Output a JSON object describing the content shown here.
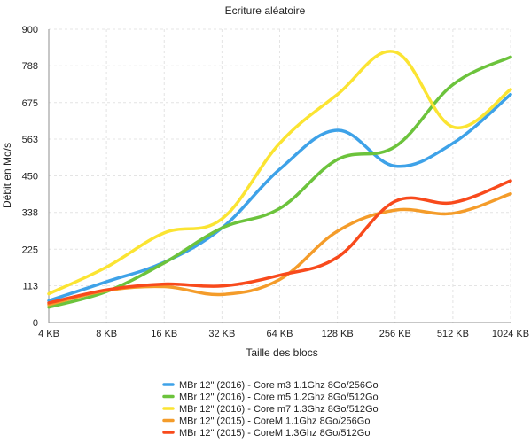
{
  "chart_data": {
    "type": "line",
    "title": "Ecriture aléatoire",
    "xlabel": "Taille des blocs",
    "ylabel": "Débit en Mo/s",
    "categories": [
      "4 KB",
      "8 KB",
      "16 KB",
      "32 KB",
      "64 KB",
      "128 KB",
      "256 KB",
      "512 KB",
      "1024 KB"
    ],
    "y_ticks": [
      "0",
      "113",
      "225",
      "338",
      "450",
      "563",
      "675",
      "788",
      "900"
    ],
    "ylim": [
      0,
      900
    ],
    "grid": true,
    "legend_position": "bottom",
    "series": [
      {
        "name": "MBr 12\" (2016) - Core m3 1.1Ghz  8Go/256Go",
        "color": "#3ea2e8",
        "values": [
          67,
          125,
          185,
          290,
          470,
          590,
          480,
          550,
          700
        ]
      },
      {
        "name": "MBr 12\" (2016) - Core m5 1.2Ghz  8Go/512Go",
        "color": "#6cc33c",
        "values": [
          47,
          95,
          183,
          290,
          350,
          500,
          540,
          730,
          815
        ]
      },
      {
        "name": "MBr 12\" (2016) - Core m7 1.3Ghz  8Go/512Go",
        "color": "#fbe432",
        "values": [
          88,
          170,
          275,
          318,
          550,
          700,
          830,
          600,
          715
        ]
      },
      {
        "name": "MBr 12\" (2015) - CoreM 1.1Ghz 8Go/256Go",
        "color": "#f49c2a",
        "values": [
          55,
          98,
          110,
          86,
          132,
          280,
          345,
          335,
          395
        ]
      },
      {
        "name": "MBr 12\" (2015) - CoreM 1.3Ghz 8Go/512Go",
        "color": "#f84a1c",
        "values": [
          60,
          100,
          118,
          112,
          145,
          200,
          372,
          368,
          435
        ]
      }
    ]
  }
}
